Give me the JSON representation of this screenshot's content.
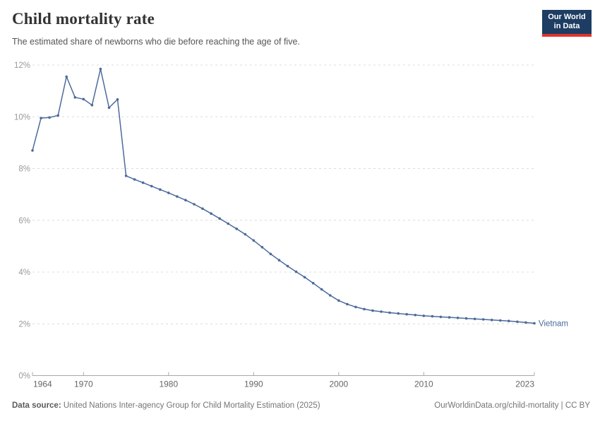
{
  "header": {
    "title": "Child mortality rate",
    "subtitle": "The estimated share of newborns who die before reaching the age of five.",
    "logo": {
      "line1": "Our World",
      "line2": "in Data",
      "bg_color": "#1d3d63",
      "stripe_color": "#e0352b"
    }
  },
  "footer": {
    "source_label": "Data source:",
    "source_text": " United Nations Inter-agency Group for Child Mortality Estimation (2025)",
    "link_text": "OurWorldinData.org/child-mortality | CC BY"
  },
  "chart_data": {
    "type": "line",
    "title": "Child mortality rate",
    "xlabel": "",
    "ylabel": "",
    "xlim": [
      1964,
      2023
    ],
    "ylim": [
      0,
      12
    ],
    "x_ticks": [
      1964,
      1970,
      1980,
      1990,
      2000,
      2010,
      2023
    ],
    "y_ticks": [
      0,
      2,
      4,
      6,
      8,
      10,
      12
    ],
    "y_tick_suffix": "%",
    "grid": "horizontal-dashed",
    "legend_position": "end-of-line",
    "line_color": "#4c6a9c",
    "x": [
      1964,
      1965,
      1966,
      1967,
      1968,
      1969,
      1970,
      1971,
      1972,
      1973,
      1974,
      1975,
      1976,
      1977,
      1978,
      1979,
      1980,
      1981,
      1982,
      1983,
      1984,
      1985,
      1986,
      1987,
      1988,
      1989,
      1990,
      1991,
      1992,
      1993,
      1994,
      1995,
      1996,
      1997,
      1998,
      1999,
      2000,
      2001,
      2002,
      2003,
      2004,
      2005,
      2006,
      2007,
      2008,
      2009,
      2010,
      2011,
      2012,
      2013,
      2014,
      2015,
      2016,
      2017,
      2018,
      2019,
      2020,
      2021,
      2022,
      2023
    ],
    "series": [
      {
        "name": "Vietnam",
        "color": "#4c6a9c",
        "values": [
          8.7,
          9.95,
          9.97,
          10.05,
          11.55,
          10.75,
          10.68,
          10.45,
          11.85,
          10.35,
          10.67,
          7.72,
          7.58,
          7.45,
          7.32,
          7.19,
          7.06,
          6.92,
          6.78,
          6.62,
          6.45,
          6.26,
          6.07,
          5.87,
          5.67,
          5.46,
          5.22,
          4.96,
          4.7,
          4.46,
          4.23,
          4.01,
          3.8,
          3.57,
          3.33,
          3.1,
          2.9,
          2.76,
          2.65,
          2.57,
          2.51,
          2.47,
          2.43,
          2.4,
          2.37,
          2.34,
          2.31,
          2.29,
          2.27,
          2.25,
          2.23,
          2.21,
          2.19,
          2.17,
          2.15,
          2.13,
          2.11,
          2.08,
          2.05,
          2.02
        ]
      }
    ]
  },
  "colors": {
    "grid": "#dcdcdc",
    "axis": "#a8a8a8",
    "y_tick_label": "#999999",
    "x_tick_label": "#666666"
  }
}
